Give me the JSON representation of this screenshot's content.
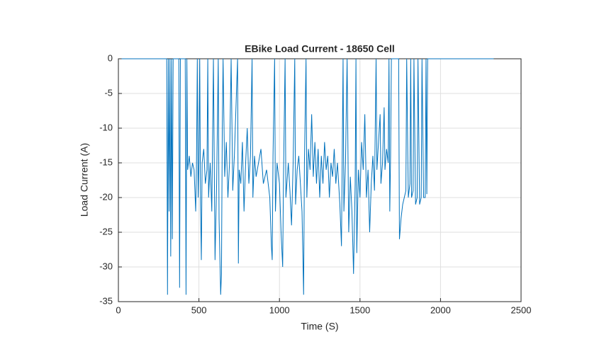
{
  "chart_data": {
    "type": "line",
    "title": "EBike Load Current - 18650 Cell",
    "xlabel": "Time (S)",
    "ylabel": "Load Current (A)",
    "xlim": [
      0,
      2500
    ],
    "ylim": [
      -35,
      0
    ],
    "xticks": [
      0,
      500,
      1000,
      1500,
      2000,
      2500
    ],
    "yticks": [
      -35,
      -30,
      -25,
      -20,
      -15,
      -10,
      -5,
      0
    ],
    "grid": true,
    "x": [
      20,
      300,
      305,
      310,
      315,
      320,
      325,
      330,
      335,
      340,
      375,
      380,
      385,
      415,
      420,
      425,
      430,
      440,
      450,
      460,
      470,
      480,
      485,
      490,
      495,
      500,
      505,
      510,
      515,
      520,
      530,
      540,
      550,
      555,
      560,
      570,
      580,
      590,
      600,
      610,
      620,
      625,
      635,
      640,
      645,
      650,
      660,
      670,
      680,
      690,
      700,
      710,
      720,
      740,
      745,
      750,
      760,
      770,
      780,
      790,
      800,
      810,
      820,
      830,
      835,
      845,
      855,
      870,
      885,
      900,
      920,
      940,
      950,
      955,
      960,
      970,
      975,
      985,
      1000,
      1010,
      1020,
      1025,
      1035,
      1040,
      1055,
      1065,
      1075,
      1085,
      1095,
      1100,
      1110,
      1120,
      1130,
      1140,
      1150,
      1155,
      1165,
      1170,
      1180,
      1190,
      1200,
      1210,
      1220,
      1230,
      1240,
      1250,
      1260,
      1270,
      1280,
      1290,
      1300,
      1310,
      1320,
      1330,
      1340,
      1350,
      1360,
      1375,
      1385,
      1395,
      1400,
      1410,
      1420,
      1430,
      1440,
      1450,
      1460,
      1470,
      1475,
      1480,
      1490,
      1500,
      1510,
      1520,
      1530,
      1540,
      1550,
      1560,
      1570,
      1580,
      1590,
      1600,
      1605,
      1615,
      1625,
      1630,
      1640,
      1650,
      1655,
      1665,
      1675,
      1680,
      1685,
      1690,
      1695,
      1740,
      1745,
      1755,
      1765,
      1775,
      1785,
      1790,
      1800,
      1810,
      1815,
      1820,
      1830,
      1835,
      1845,
      1855,
      1860,
      1870,
      1880,
      1885,
      1895,
      1905,
      1910,
      1915,
      1920,
      2330
    ],
    "series": [
      {
        "name": "Load Current",
        "color": "#0072bd",
        "values": [
          0,
          0,
          -34,
          0,
          -22,
          0,
          -28.5,
          0,
          -26,
          0,
          0,
          -33,
          0,
          0,
          -34,
          0,
          -16,
          -14,
          -17,
          -15,
          -16,
          -22,
          -15,
          0,
          -20,
          -15,
          0,
          -21,
          -29,
          -15,
          -13,
          -18,
          -16,
          0,
          -20,
          -15,
          -22,
          0,
          -29,
          -18,
          0,
          -23,
          -34,
          -31,
          -10,
          0,
          -17,
          -12,
          -20,
          -15,
          0,
          -19,
          -14,
          0,
          -29.5,
          -16,
          -18,
          -12,
          -22,
          -15,
          -10,
          -18,
          -14,
          0,
          -20,
          -14,
          -17,
          -15,
          -13,
          -18,
          -16,
          -20,
          -27,
          -29,
          -14,
          0,
          -22,
          -15,
          -18,
          -25,
          -30,
          -17,
          0,
          -20,
          -15,
          -19,
          -24,
          -15,
          0,
          -21,
          -16,
          -14,
          -18,
          -22,
          -34,
          -15,
          0,
          -20,
          -13,
          -16,
          -8,
          -17,
          -12,
          -18,
          -13,
          -20,
          -14,
          -18,
          -12,
          -16,
          -14,
          -20,
          -15,
          -17,
          -13,
          -18,
          -15,
          -21,
          -27,
          0,
          -22,
          -15,
          0,
          -25,
          -17,
          -22,
          -31,
          -18,
          0,
          -28,
          -16,
          -20,
          -12,
          -16,
          -8,
          -20,
          -16,
          -25,
          -18,
          -14,
          -19,
          0,
          -16,
          -12,
          -8,
          -18,
          -15,
          -7,
          -16,
          -13,
          -15,
          0,
          -22,
          -14,
          0,
          0,
          -26,
          -23,
          -21,
          -20,
          -19,
          0,
          -20,
          -18,
          0,
          -20,
          -19,
          0,
          -21,
          -20,
          0,
          -21,
          -20,
          0,
          -20,
          -20,
          0,
          -19.5,
          0,
          0
        ]
      }
    ]
  }
}
